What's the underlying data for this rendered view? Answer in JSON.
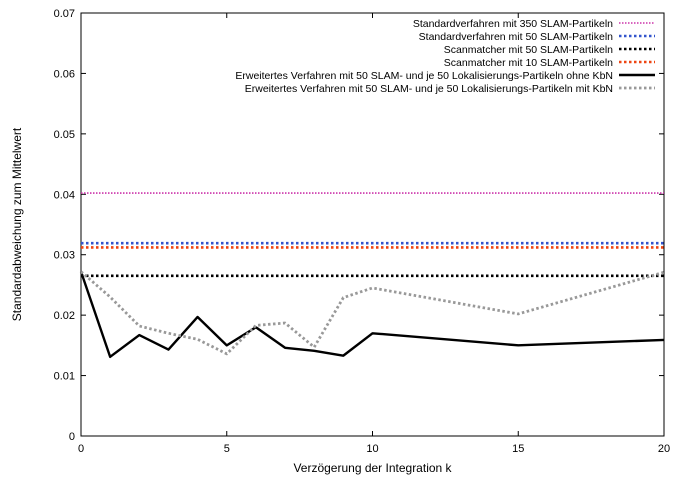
{
  "chart_data": {
    "type": "line",
    "title": "",
    "xlabel": "Verzögerung der Integration k",
    "ylabel": "Standardabweichung zum Mittelwert",
    "xlim": [
      0,
      20
    ],
    "ylim": [
      0,
      0.07
    ],
    "xticks": [
      "0",
      "5",
      "10",
      "15",
      "20"
    ],
    "yticks": [
      "0",
      "0.01",
      "0.02",
      "0.03",
      "0.04",
      "0.05",
      "0.06",
      "0.07"
    ],
    "legend_position": "top-right",
    "grid": false,
    "series": [
      {
        "name": "Standardverfahren mit 350 SLAM-Partikeln",
        "color": "#cc33aa",
        "style": "dotted-fine",
        "x": [
          0,
          20
        ],
        "y": [
          0.0402,
          0.0402
        ]
      },
      {
        "name": "Standardverfahren mit 50 SLAM-Partikeln",
        "color": "#3355cc",
        "style": "dotted",
        "x": [
          0,
          20
        ],
        "y": [
          0.0319,
          0.0319
        ]
      },
      {
        "name": "Scanmatcher mit 50 SLAM-Partikeln",
        "color": "#000000",
        "style": "dotted",
        "x": [
          0,
          20
        ],
        "y": [
          0.0265,
          0.0265
        ]
      },
      {
        "name": "Scanmatcher mit 10 SLAM-Partikeln",
        "color": "#ee4411",
        "style": "dotted",
        "x": [
          0,
          20
        ],
        "y": [
          0.0312,
          0.0312
        ]
      },
      {
        "name": "Erweitertes Verfahren mit 50 SLAM- und je 50 Lokalisierungs-Partikeln ohne KbN",
        "color": "#000000",
        "style": "solid",
        "x": [
          0,
          1,
          2,
          3,
          4,
          5,
          6,
          7,
          8,
          9,
          10,
          15,
          20
        ],
        "y": [
          0.0272,
          0.0131,
          0.0167,
          0.0143,
          0.0197,
          0.015,
          0.018,
          0.0146,
          0.0141,
          0.0133,
          0.017,
          0.015,
          0.0159
        ]
      },
      {
        "name": "Erweitertes Verfahren mit 50 SLAM- und je 50 Lokalisierungs-Partikeln mit KbN",
        "color": "#999999",
        "style": "dotted-thick",
        "x": [
          0,
          1,
          2,
          3,
          4,
          5,
          6,
          7,
          8,
          9,
          10,
          15,
          20
        ],
        "y": [
          0.0272,
          0.023,
          0.0182,
          0.017,
          0.016,
          0.0136,
          0.0183,
          0.0187,
          0.0147,
          0.0229,
          0.0245,
          0.0202,
          0.0271
        ]
      }
    ]
  }
}
